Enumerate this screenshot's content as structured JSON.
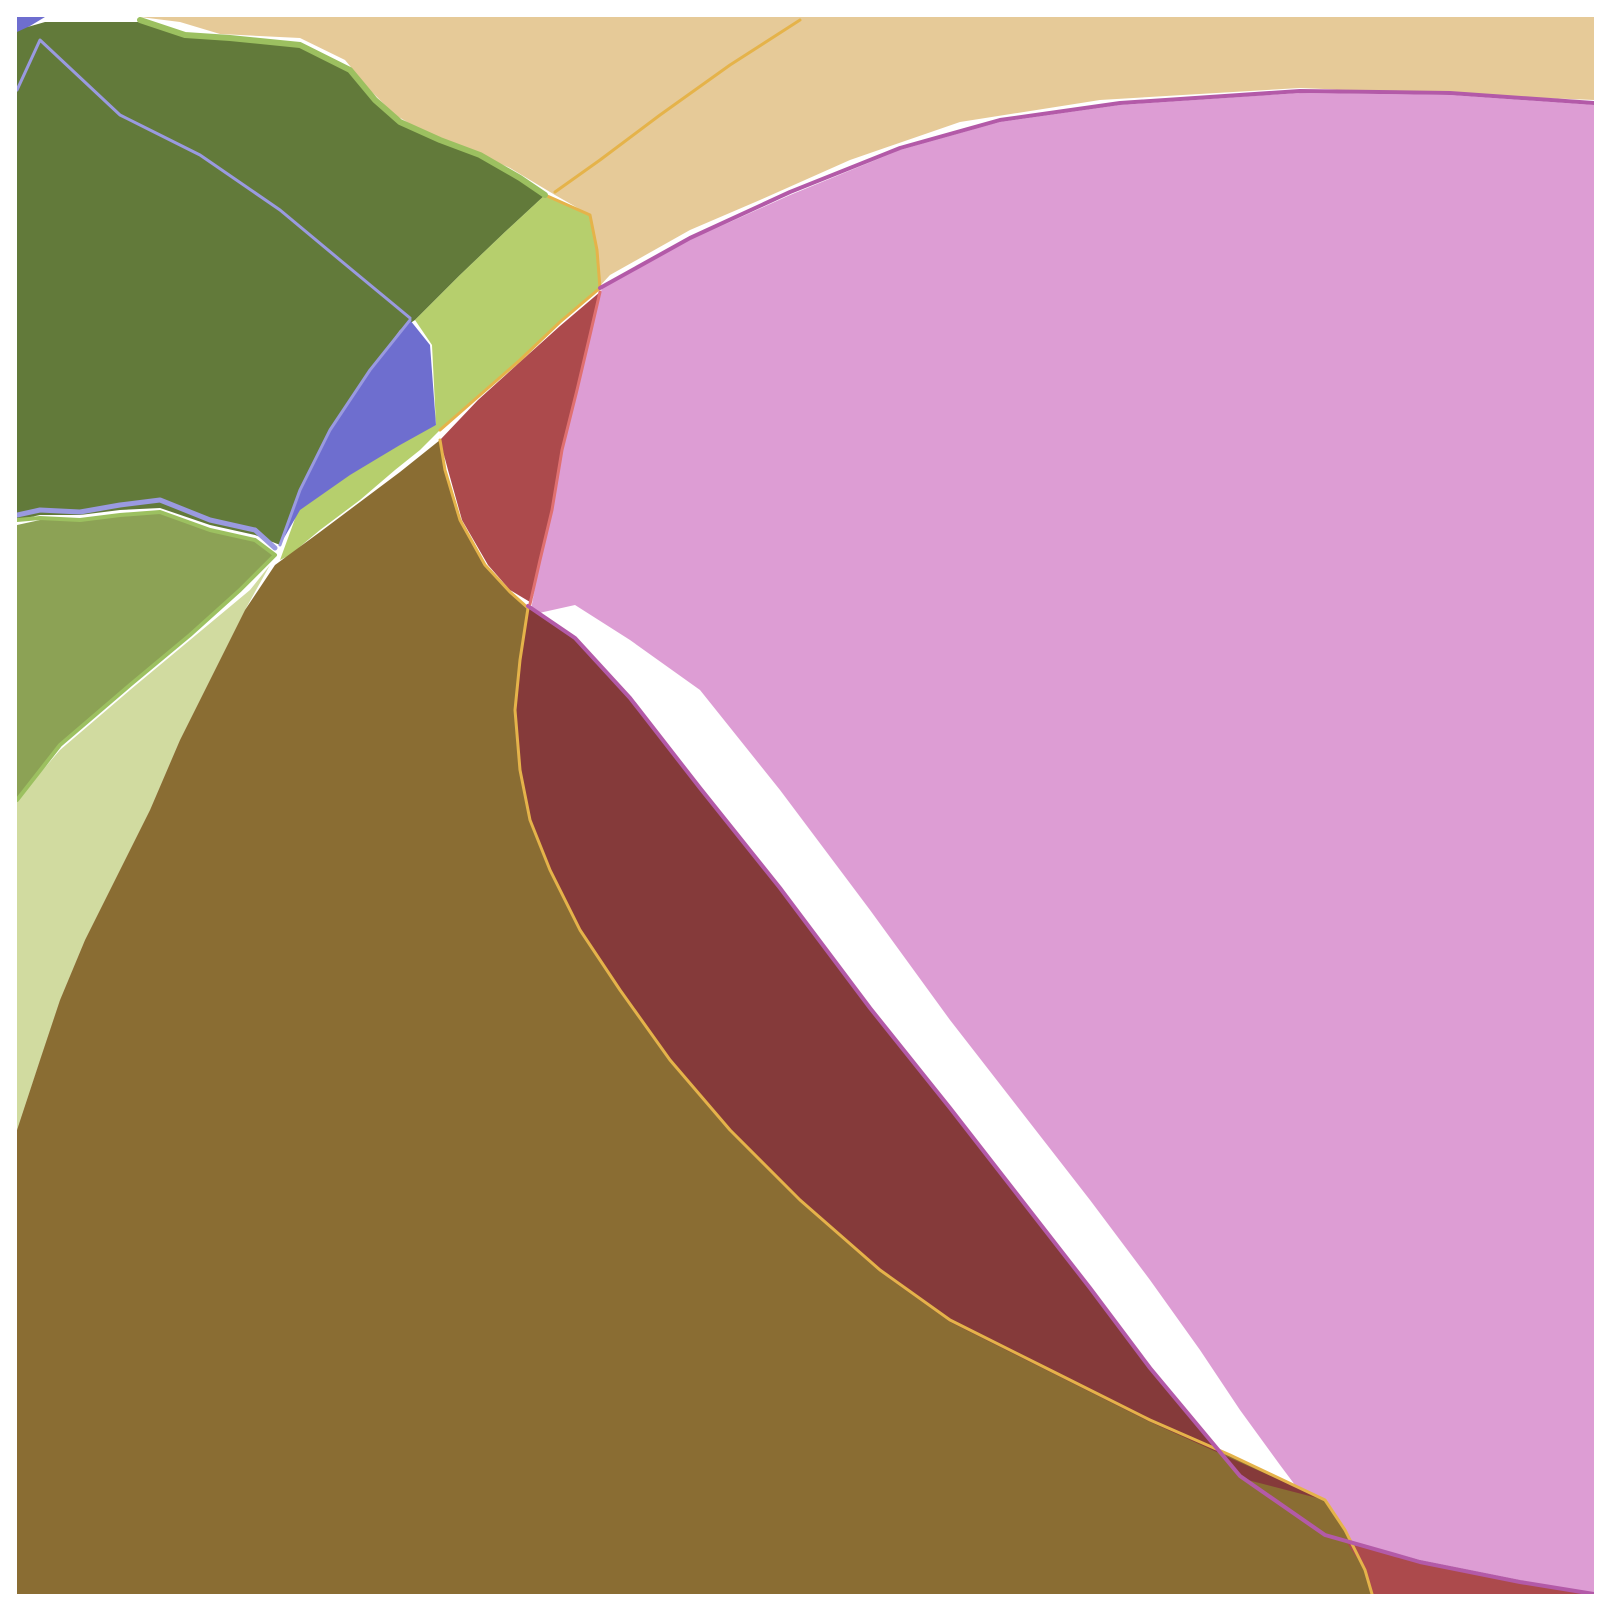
{
  "figure": {
    "background": "#ffffff",
    "regions": [
      {
        "name": "tan-region",
        "color": "#e6ca98"
      },
      {
        "name": "pink-region",
        "color": "#dd9dd4"
      },
      {
        "name": "dark-green-region",
        "color": "#627a3a"
      },
      {
        "name": "light-green-region",
        "color": "#b6cf6d"
      },
      {
        "name": "blue-region",
        "color": "#6e6ecf"
      },
      {
        "name": "olive-green-region",
        "color": "#8ca255"
      },
      {
        "name": "pale-green-region",
        "color": "#d1dba0"
      },
      {
        "name": "brown-region",
        "color": "#8a6d33"
      },
      {
        "name": "red-region",
        "color": "#ac4a4c"
      },
      {
        "name": "dark-red-region",
        "color": "#853a3a"
      }
    ],
    "boundary_colors": {
      "gold": "#e5b34a",
      "orchid": "#b35aa8",
      "salmon": "#e07070",
      "lavender": "#9a9ae0",
      "lime": "#9cc060"
    }
  }
}
